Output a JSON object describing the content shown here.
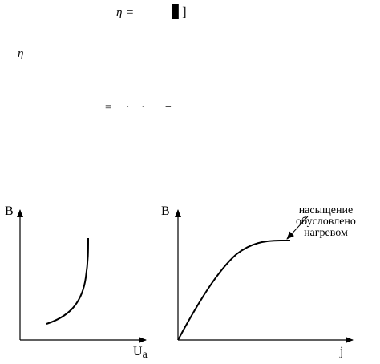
{
  "formula_top": {
    "eta": "η",
    "equals": "=",
    "symbol_fragment": "▋]"
  },
  "margin_symbol": "η",
  "formula_middle": {
    "equals": "=",
    "dot_1": "·",
    "dot_2": "·",
    "minus": "−"
  },
  "left_graph": {
    "y_label": "B",
    "x_label_main": "U",
    "x_label_sub": "a"
  },
  "right_graph": {
    "y_label": "B",
    "x_label": "j",
    "annotation_lines": [
      "насыщение",
      "обусловлено",
      "нагревом"
    ]
  }
}
